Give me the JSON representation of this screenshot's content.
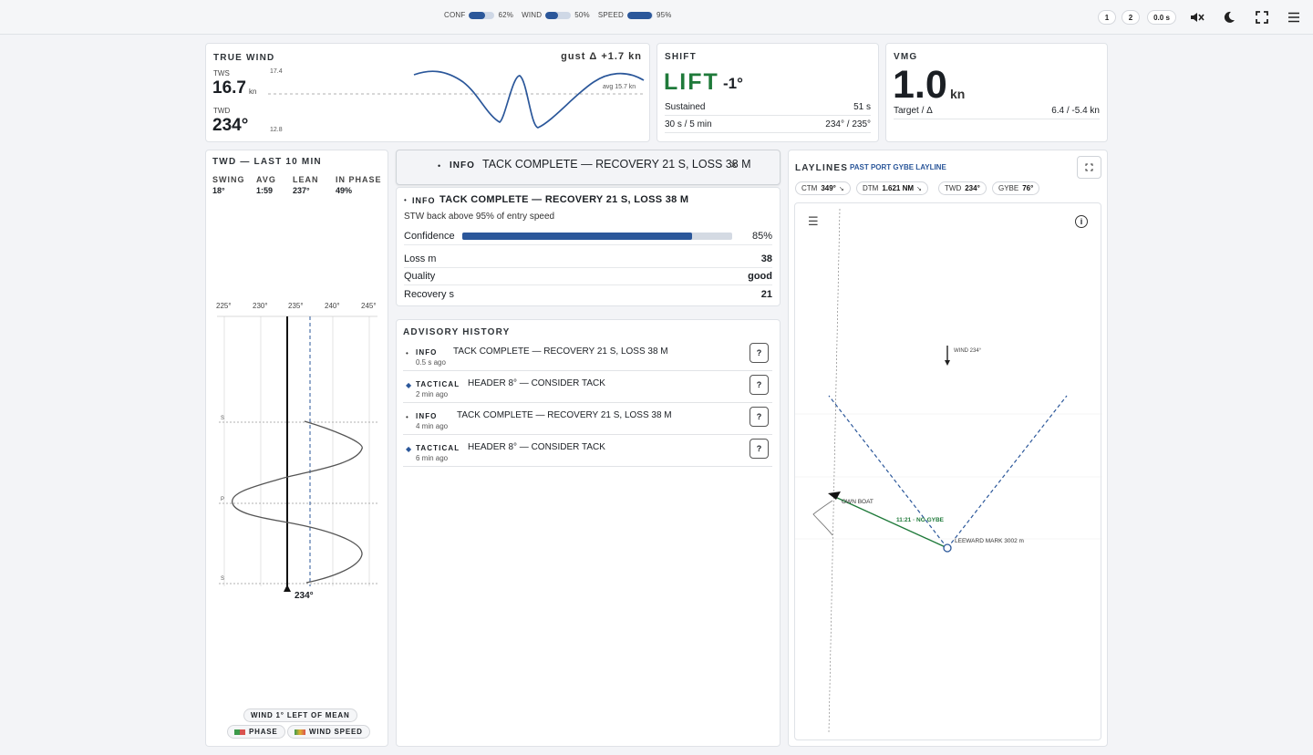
{
  "topbar": {
    "meters": [
      {
        "label": "CONF",
        "value": "62%",
        "level": 0.62
      },
      {
        "label": "WIND",
        "value": "50%",
        "level": 0.5
      },
      {
        "label": "SPEED",
        "value": "95%",
        "level": 0.95
      }
    ],
    "page1": "1",
    "page2": "2",
    "timer": "0.0 s",
    "icons": [
      "mute-icon",
      "moon-icon",
      "fullscreen-icon",
      "menu-icon"
    ]
  },
  "true_wind": {
    "title": "TRUE WIND",
    "gust": "gust Δ +1.7 kn",
    "tws_label": "TWS",
    "tws_value": "16.7",
    "tws_unit": "kn",
    "twd_label": "TWD",
    "twd_value": "234°",
    "y_max": "17.4",
    "y_min": "12.8",
    "avg_label": "avg 15.7 kn"
  },
  "shift": {
    "title": "SHIFT",
    "state": "LIFT",
    "delta": "-1°",
    "sustained_label": "Sustained",
    "sustained_value": "51 s",
    "window_label": "30 s / 5 min",
    "window_value": "234° / 235°"
  },
  "vmg": {
    "title": "VMG",
    "value": "1.0",
    "unit": "kn",
    "target_label": "Target / Δ",
    "target_value": "6.4 / -5.4 kn"
  },
  "twd_panel": {
    "title": "TWD — LAST 10 MIN",
    "stats": [
      {
        "label": "SWING",
        "value": "18°"
      },
      {
        "label": "AVG",
        "value": "1:59"
      },
      {
        "label": "LEAN",
        "value": "237°"
      },
      {
        "label": "IN PHASE",
        "value": "49%"
      }
    ],
    "ticks": [
      "225°",
      "230°",
      "235°",
      "240°",
      "245°"
    ],
    "phase_marks": [
      "S",
      "P",
      "S"
    ],
    "current": "234°",
    "footer": "WIND 1° LEFT OF MEAN",
    "legend": [
      "PHASE",
      "WIND SPEED"
    ]
  },
  "toast": {
    "severity": "INFO",
    "message": "TACK COMPLETE — RECOVERY 21 S, LOSS 38 M",
    "close": "×"
  },
  "detail": {
    "severity": "INFO",
    "title": "TACK COMPLETE — RECOVERY 21 S, LOSS 38 M",
    "subtitle": "STW back above 95% of entry speed",
    "confidence_label": "Confidence",
    "confidence_value": "85%",
    "confidence": 0.85,
    "rows": [
      {
        "label": "Loss m",
        "value": "38"
      },
      {
        "label": "Quality",
        "value": "good"
      },
      {
        "label": "Recovery s",
        "value": "21"
      }
    ]
  },
  "history": {
    "title": "ADVISORY HISTORY",
    "items": [
      {
        "kind": "dot",
        "severity": "INFO",
        "message": "TACK COMPLETE — RECOVERY 21 S, LOSS 38 M",
        "ago": "0.5 s ago",
        "action": "?"
      },
      {
        "kind": "diamond",
        "severity": "TACTICAL",
        "message": "HEADER 8° — CONSIDER TACK",
        "ago": "2 min ago",
        "action": "?"
      },
      {
        "kind": "dot",
        "severity": "INFO",
        "message": "TACK COMPLETE — RECOVERY 21 S, LOSS 38 M",
        "ago": "4 min ago",
        "action": "?"
      },
      {
        "kind": "diamond",
        "severity": "TACTICAL",
        "message": "HEADER 8° — CONSIDER TACK",
        "ago": "6 min ago",
        "action": "?"
      }
    ]
  },
  "laylines": {
    "title": "LAYLINES",
    "status": "PAST PORT GYBE LAYLINE",
    "chips": [
      {
        "label": "CTM",
        "value": "349°"
      },
      {
        "label": "DTM",
        "value": "1.621 NM"
      },
      {
        "label": "TWD",
        "value": "234°"
      },
      {
        "label": "GYBE",
        "value": "76°"
      }
    ],
    "wind_label": "WIND 234°",
    "own_boat": "OWN BOAT",
    "eta_label": "11:21 · NO GYBE",
    "mark_label": "LEEWARD MARK 3002 m"
  },
  "colors": {
    "accent": "#2b579a",
    "lift": "#1f7a3a",
    "layline": "#2b579a"
  }
}
